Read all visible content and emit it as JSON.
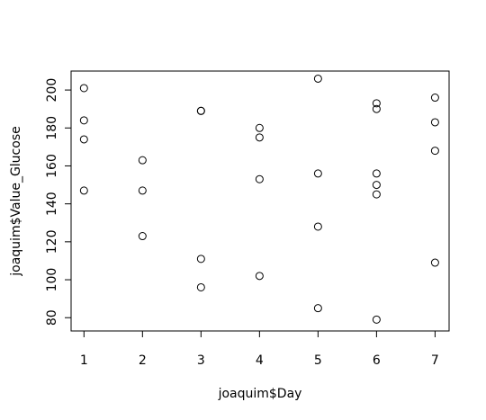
{
  "chart_data": {
    "type": "scatter",
    "title": "",
    "xlabel": "joaquim$Day",
    "ylabel": "joaquim$Value_Glucose",
    "xlim": [
      0.78,
      7.24
    ],
    "ylim": [
      73,
      210
    ],
    "xticks": [
      1,
      2,
      3,
      4,
      5,
      6,
      7
    ],
    "yticks": [
      80,
      100,
      120,
      140,
      160,
      180,
      200
    ],
    "grid": false,
    "legend": "none",
    "marker": "open-circle",
    "color": "#000000",
    "points": [
      {
        "x": 1,
        "y": 201
      },
      {
        "x": 1,
        "y": 184
      },
      {
        "x": 1,
        "y": 174
      },
      {
        "x": 1,
        "y": 147
      },
      {
        "x": 2,
        "y": 163
      },
      {
        "x": 2,
        "y": 147
      },
      {
        "x": 2,
        "y": 123
      },
      {
        "x": 3,
        "y": 189
      },
      {
        "x": 3,
        "y": 189
      },
      {
        "x": 3,
        "y": 111
      },
      {
        "x": 3,
        "y": 96
      },
      {
        "x": 4,
        "y": 180
      },
      {
        "x": 4,
        "y": 175
      },
      {
        "x": 4,
        "y": 153
      },
      {
        "x": 4,
        "y": 102
      },
      {
        "x": 5,
        "y": 206
      },
      {
        "x": 5,
        "y": 156
      },
      {
        "x": 5,
        "y": 128
      },
      {
        "x": 5,
        "y": 85
      },
      {
        "x": 6,
        "y": 193
      },
      {
        "x": 6,
        "y": 190
      },
      {
        "x": 6,
        "y": 156
      },
      {
        "x": 6,
        "y": 150
      },
      {
        "x": 6,
        "y": 145
      },
      {
        "x": 6,
        "y": 79
      },
      {
        "x": 7,
        "y": 196
      },
      {
        "x": 7,
        "y": 183
      },
      {
        "x": 7,
        "y": 168
      },
      {
        "x": 7,
        "y": 109
      }
    ]
  }
}
